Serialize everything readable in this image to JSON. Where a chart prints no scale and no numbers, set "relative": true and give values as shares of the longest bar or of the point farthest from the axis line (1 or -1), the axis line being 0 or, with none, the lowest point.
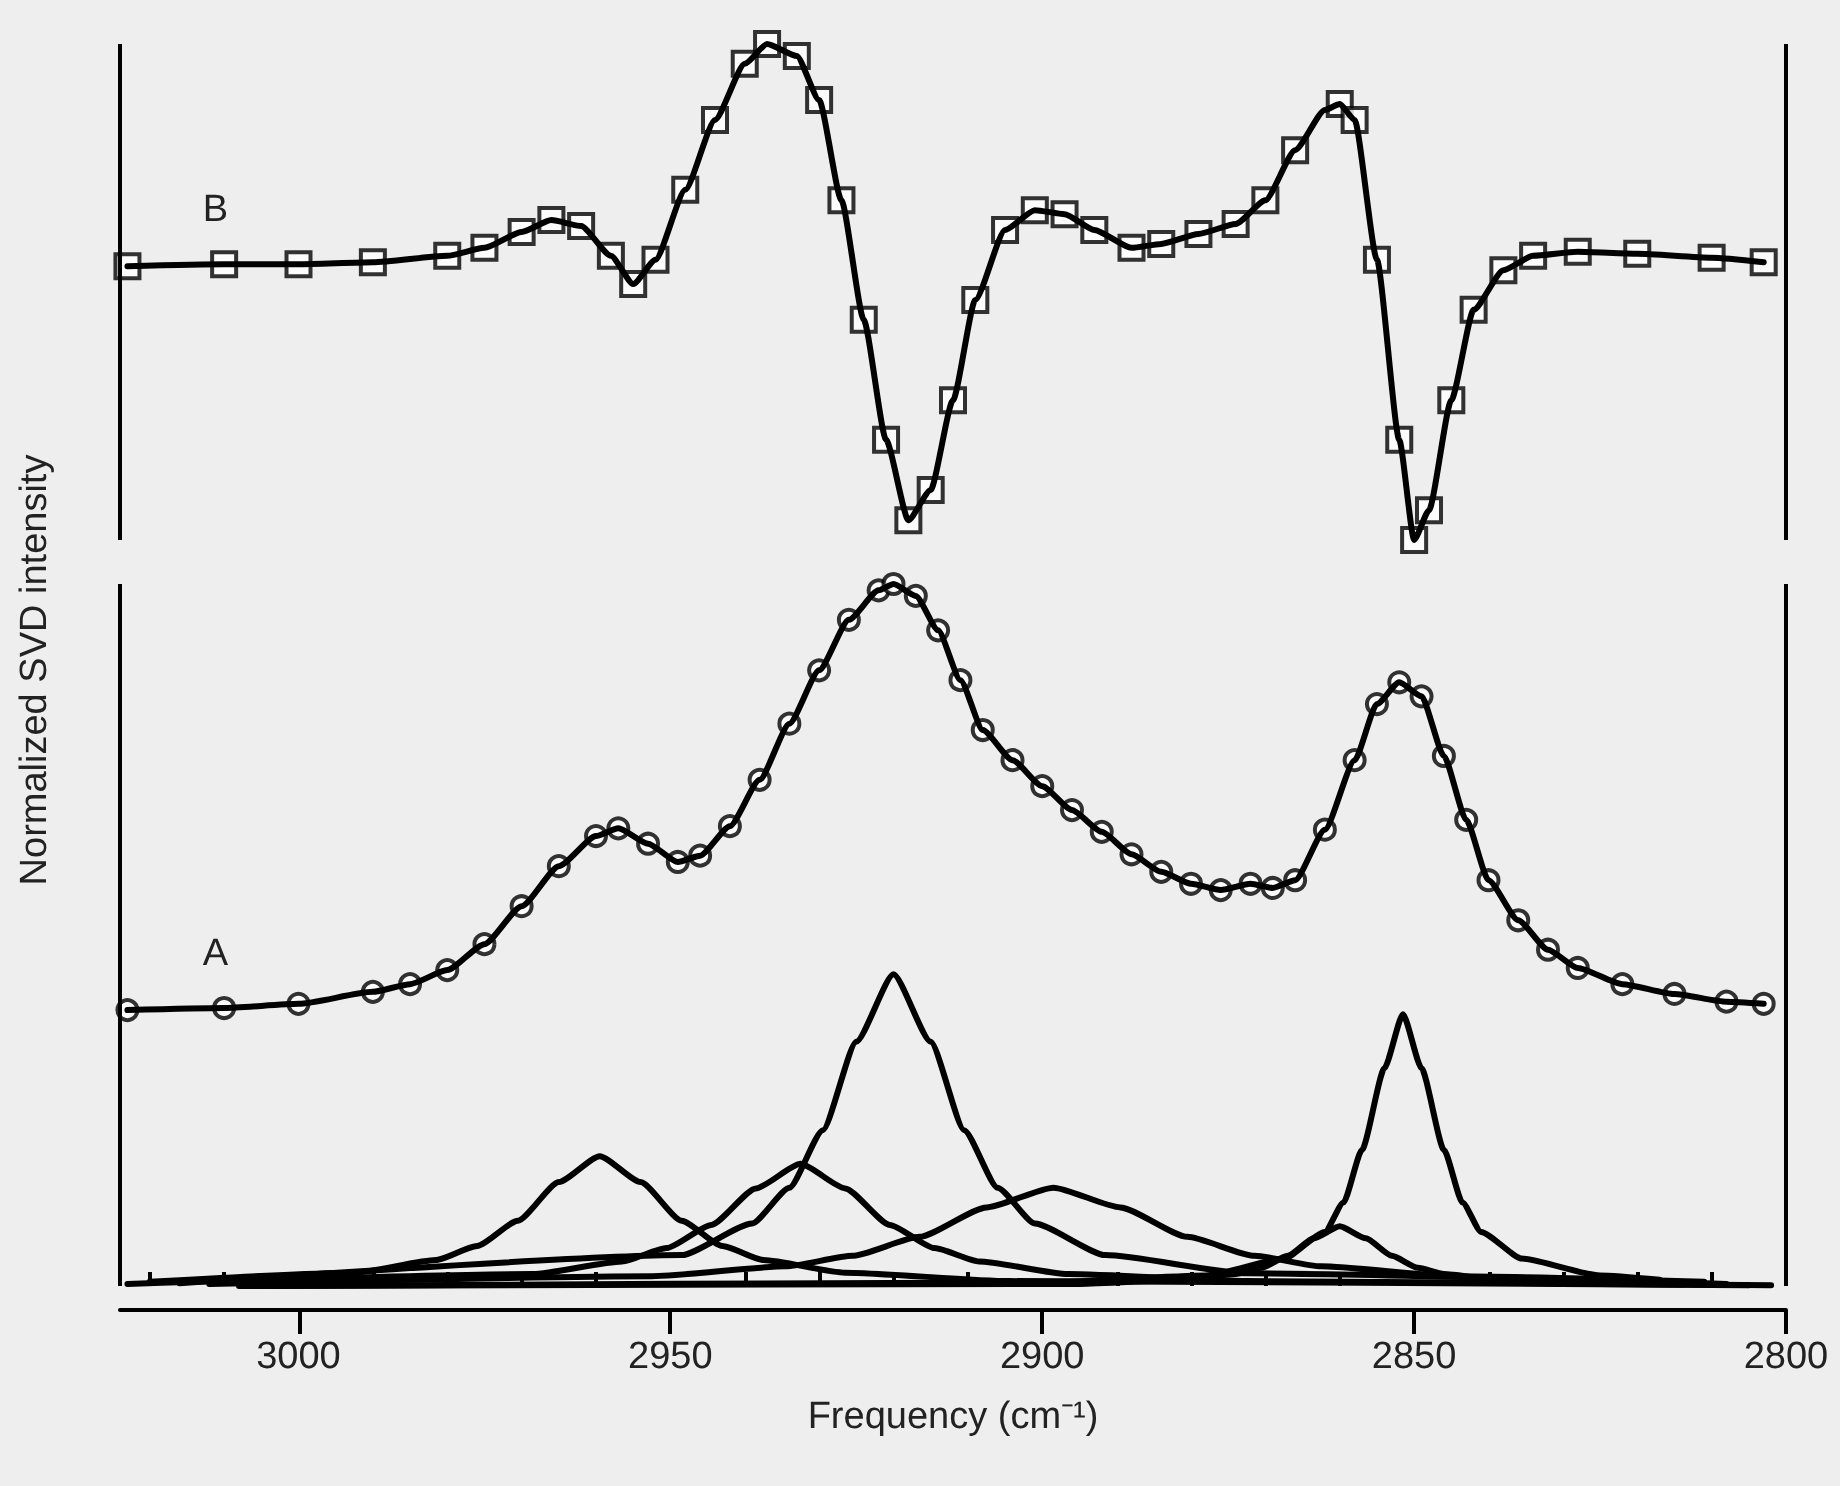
{
  "chart_data": [
    {
      "type": "line",
      "relative": true,
      "xlim": [
        3024,
        2800
      ],
      "tick_labels": false,
      "ylabel": "Normalized SVD intensity",
      "annotations": [
        "B"
      ],
      "series": [
        {
          "type": "scatter",
          "marker": "square",
          "color": "#000000",
          "x": [
            3023,
            3010,
            3000,
            2990,
            2980,
            2975,
            2970,
            2966,
            2962,
            2958,
            2955,
            2952,
            2948,
            2944,
            2940,
            2937,
            2933,
            2930,
            2927,
            2924,
            2921,
            2918,
            2915,
            2912,
            2909,
            2905,
            2901,
            2897,
            2893,
            2888,
            2884,
            2879,
            2874,
            2870,
            2866,
            2860,
            2858,
            2855,
            2852,
            2850,
            2848,
            2845,
            2842,
            2838,
            2834,
            2828,
            2820,
            2810,
            2803
          ],
          "values": [
            0.552,
            0.556,
            0.556,
            0.56,
            0.573,
            0.589,
            0.621,
            0.645,
            0.633,
            0.573,
            0.516,
            0.565,
            0.706,
            0.847,
            0.96,
            1.0,
            0.976,
            0.887,
            0.685,
            0.444,
            0.202,
            0.04,
            0.101,
            0.282,
            0.484,
            0.625,
            0.665,
            0.657,
            0.625,
            0.589,
            0.597,
            0.617,
            0.637,
            0.685,
            0.786,
            0.879,
            0.847,
            0.565,
            0.202,
            0.0,
            0.06,
            0.282,
            0.464,
            0.544,
            0.573,
            0.581,
            0.577,
            0.569,
            0.56
          ]
        },
        {
          "type": "line",
          "color": "#000000",
          "x": [
            3023,
            3010,
            3000,
            2990,
            2980,
            2975,
            2970,
            2966,
            2962,
            2958,
            2955,
            2952,
            2948,
            2944,
            2940,
            2937,
            2933,
            2930,
            2927,
            2924,
            2921,
            2918,
            2915,
            2912,
            2909,
            2905,
            2901,
            2897,
            2893,
            2888,
            2884,
            2879,
            2874,
            2870,
            2866,
            2862,
            2860,
            2858,
            2855,
            2852,
            2850,
            2848,
            2845,
            2842,
            2838,
            2834,
            2828,
            2820,
            2810,
            2803
          ],
          "values": [
            0.552,
            0.556,
            0.556,
            0.56,
            0.573,
            0.589,
            0.621,
            0.645,
            0.633,
            0.573,
            0.516,
            0.565,
            0.706,
            0.847,
            0.96,
            1.0,
            0.976,
            0.887,
            0.685,
            0.444,
            0.202,
            0.04,
            0.101,
            0.282,
            0.484,
            0.625,
            0.665,
            0.657,
            0.625,
            0.589,
            0.597,
            0.617,
            0.637,
            0.685,
            0.786,
            0.867,
            0.879,
            0.847,
            0.565,
            0.202,
            0.0,
            0.06,
            0.282,
            0.464,
            0.544,
            0.573,
            0.581,
            0.577,
            0.569,
            0.56
          ]
        }
      ]
    },
    {
      "type": "line",
      "relative": true,
      "xlim": [
        3024,
        2800
      ],
      "xlabel": "Frequency (cm⁻¹)",
      "xticks": [
        {
          "value": 3020,
          "label": null
        },
        {
          "value": 3010,
          "label": null
        },
        3000,
        {
          "value": 2990,
          "label": null
        },
        {
          "value": 2980,
          "label": null
        },
        {
          "value": 2970,
          "label": null
        },
        {
          "value": 2960,
          "label": null
        },
        2950,
        {
          "value": 2940,
          "label": null
        },
        {
          "value": 2930,
          "label": null
        },
        {
          "value": 2920,
          "label": null
        },
        {
          "value": 2910,
          "label": null
        },
        2900,
        {
          "value": 2890,
          "label": null
        },
        {
          "value": 2880,
          "label": null
        },
        {
          "value": 2870,
          "label": null
        },
        {
          "value": 2860,
          "label": null
        },
        2850,
        {
          "value": 2840,
          "label": null
        },
        {
          "value": 2830,
          "label": null
        },
        {
          "value": 2820,
          "label": null
        },
        {
          "value": 2810,
          "label": null
        },
        2800
      ],
      "annotations": [
        "A"
      ],
      "series": [
        {
          "type": "scatter",
          "marker": "circle",
          "color": "#000000",
          "x": [
            3023,
            3010,
            3000,
            2990,
            2985,
            2980,
            2975,
            2970,
            2965,
            2960,
            2957,
            2953,
            2949,
            2946,
            2942,
            2938,
            2934,
            2930,
            2926,
            2922,
            2920,
            2917,
            2914,
            2911,
            2908,
            2904,
            2900,
            2896,
            2892,
            2888,
            2884,
            2880,
            2876,
            2872,
            2869,
            2866,
            2862,
            2858,
            2855,
            2852,
            2849,
            2846,
            2843,
            2840,
            2836,
            2832,
            2828,
            2822,
            2815,
            2808,
            2803
          ],
          "values": [
            0.393,
            0.396,
            0.402,
            0.419,
            0.43,
            0.45,
            0.487,
            0.541,
            0.598,
            0.641,
            0.652,
            0.63,
            0.604,
            0.613,
            0.655,
            0.721,
            0.801,
            0.877,
            0.949,
            0.991,
            1.0,
            0.983,
            0.934,
            0.863,
            0.792,
            0.749,
            0.712,
            0.678,
            0.647,
            0.615,
            0.59,
            0.573,
            0.564,
            0.573,
            0.567,
            0.578,
            0.65,
            0.749,
            0.829,
            0.86,
            0.84,
            0.755,
            0.664,
            0.578,
            0.521,
            0.479,
            0.453,
            0.43,
            0.416,
            0.405,
            0.402
          ]
        },
        {
          "type": "line",
          "color": "#000000",
          "x": [
            3023,
            3010,
            3000,
            2990,
            2985,
            2980,
            2975,
            2970,
            2965,
            2960,
            2957,
            2953,
            2949,
            2946,
            2942,
            2938,
            2934,
            2930,
            2926,
            2922,
            2920,
            2917,
            2914,
            2911,
            2908,
            2904,
            2900,
            2896,
            2892,
            2888,
            2884,
            2880,
            2876,
            2872,
            2869,
            2866,
            2862,
            2858,
            2855,
            2852,
            2849,
            2846,
            2843,
            2840,
            2836,
            2832,
            2828,
            2822,
            2815,
            2808,
            2803
          ],
          "values": [
            0.393,
            0.396,
            0.402,
            0.419,
            0.43,
            0.45,
            0.487,
            0.541,
            0.598,
            0.641,
            0.652,
            0.63,
            0.604,
            0.613,
            0.655,
            0.721,
            0.801,
            0.877,
            0.949,
            0.991,
            1.0,
            0.983,
            0.934,
            0.863,
            0.792,
            0.749,
            0.712,
            0.678,
            0.647,
            0.615,
            0.59,
            0.573,
            0.564,
            0.573,
            0.567,
            0.578,
            0.65,
            0.749,
            0.829,
            0.86,
            0.84,
            0.755,
            0.664,
            0.578,
            0.521,
            0.479,
            0.453,
            0.43,
            0.416,
            0.405,
            0.402
          ]
        },
        {
          "type": "line",
          "color": "#000000",
          "x": [
            3020,
            2992.5,
            2981.5,
            2976,
            2970.5,
            2965,
            2959.5,
            2954,
            2948.5,
            2943,
            2937.5,
            2926.5,
            2904.5,
            2805
          ],
          "values": [
            0.006,
            0.019,
            0.037,
            0.057,
            0.093,
            0.148,
            0.185,
            0.148,
            0.093,
            0.057,
            0.037,
            0.019,
            0.007,
            0.001
          ]
        },
        {
          "type": "line",
          "color": "#000000",
          "x": [
            3023,
            2968.5,
            2956.5,
            2950.5,
            2944.5,
            2938.5,
            2932.5,
            2926.5,
            2920.5,
            2914.5,
            2908.5,
            2896.5,
            2872.5,
            2802
          ],
          "values": [
            0.003,
            0.017,
            0.035,
            0.054,
            0.087,
            0.139,
            0.174,
            0.139,
            0.087,
            0.054,
            0.035,
            0.017,
            0.007,
            0.001
          ]
        },
        {
          "type": "line",
          "color": "#000000",
          "x": [
            3016,
            2948.5,
            2939,
            2934,
            2929.5,
            2925,
            2920,
            2915,
            2910.5,
            2906,
            2901,
            2891.5,
            2872.5,
            2808
          ],
          "values": [
            0.004,
            0.044,
            0.089,
            0.14,
            0.222,
            0.348,
            0.444,
            0.348,
            0.222,
            0.14,
            0.089,
            0.044,
            0.018,
            0.003
          ]
        },
        {
          "type": "line",
          "color": "#000000",
          "x": [
            3012,
            2952.5,
            2934.5,
            2925.5,
            2916.5,
            2907.5,
            2898.5,
            2889.5,
            2880.5,
            2871.5,
            2862.5,
            2844.5,
            2811
          ],
          "values": [
            0.003,
            0.014,
            0.028,
            0.043,
            0.07,
            0.112,
            0.14,
            0.112,
            0.07,
            0.043,
            0.028,
            0.014,
            0.006
          ]
        },
        {
          "type": "line",
          "color": "#000000",
          "x": [
            3008,
            2895,
            2881,
            2874,
            2870.5,
            2867,
            2863.5,
            2860,
            2856.5,
            2853,
            2849.5,
            2846,
            2839,
            2825,
            2814
          ],
          "values": [
            0.0,
            0.003,
            0.009,
            0.017,
            0.026,
            0.043,
            0.068,
            0.085,
            0.068,
            0.043,
            0.026,
            0.017,
            0.009,
            0.003,
            0.002
          ]
        },
        {
          "type": "line",
          "color": "#000000",
          "x": [
            3004,
            2900,
            2878,
            2867.5,
            2862,
            2859.5,
            2857,
            2854,
            2851.5,
            2849,
            2846,
            2843.5,
            2841,
            2835.5,
            2825,
            2817
          ],
          "values": [
            0.0,
            0.005,
            0.015,
            0.039,
            0.077,
            0.119,
            0.194,
            0.31,
            0.387,
            0.31,
            0.194,
            0.119,
            0.077,
            0.039,
            0.015,
            0.009
          ]
        }
      ]
    }
  ]
}
